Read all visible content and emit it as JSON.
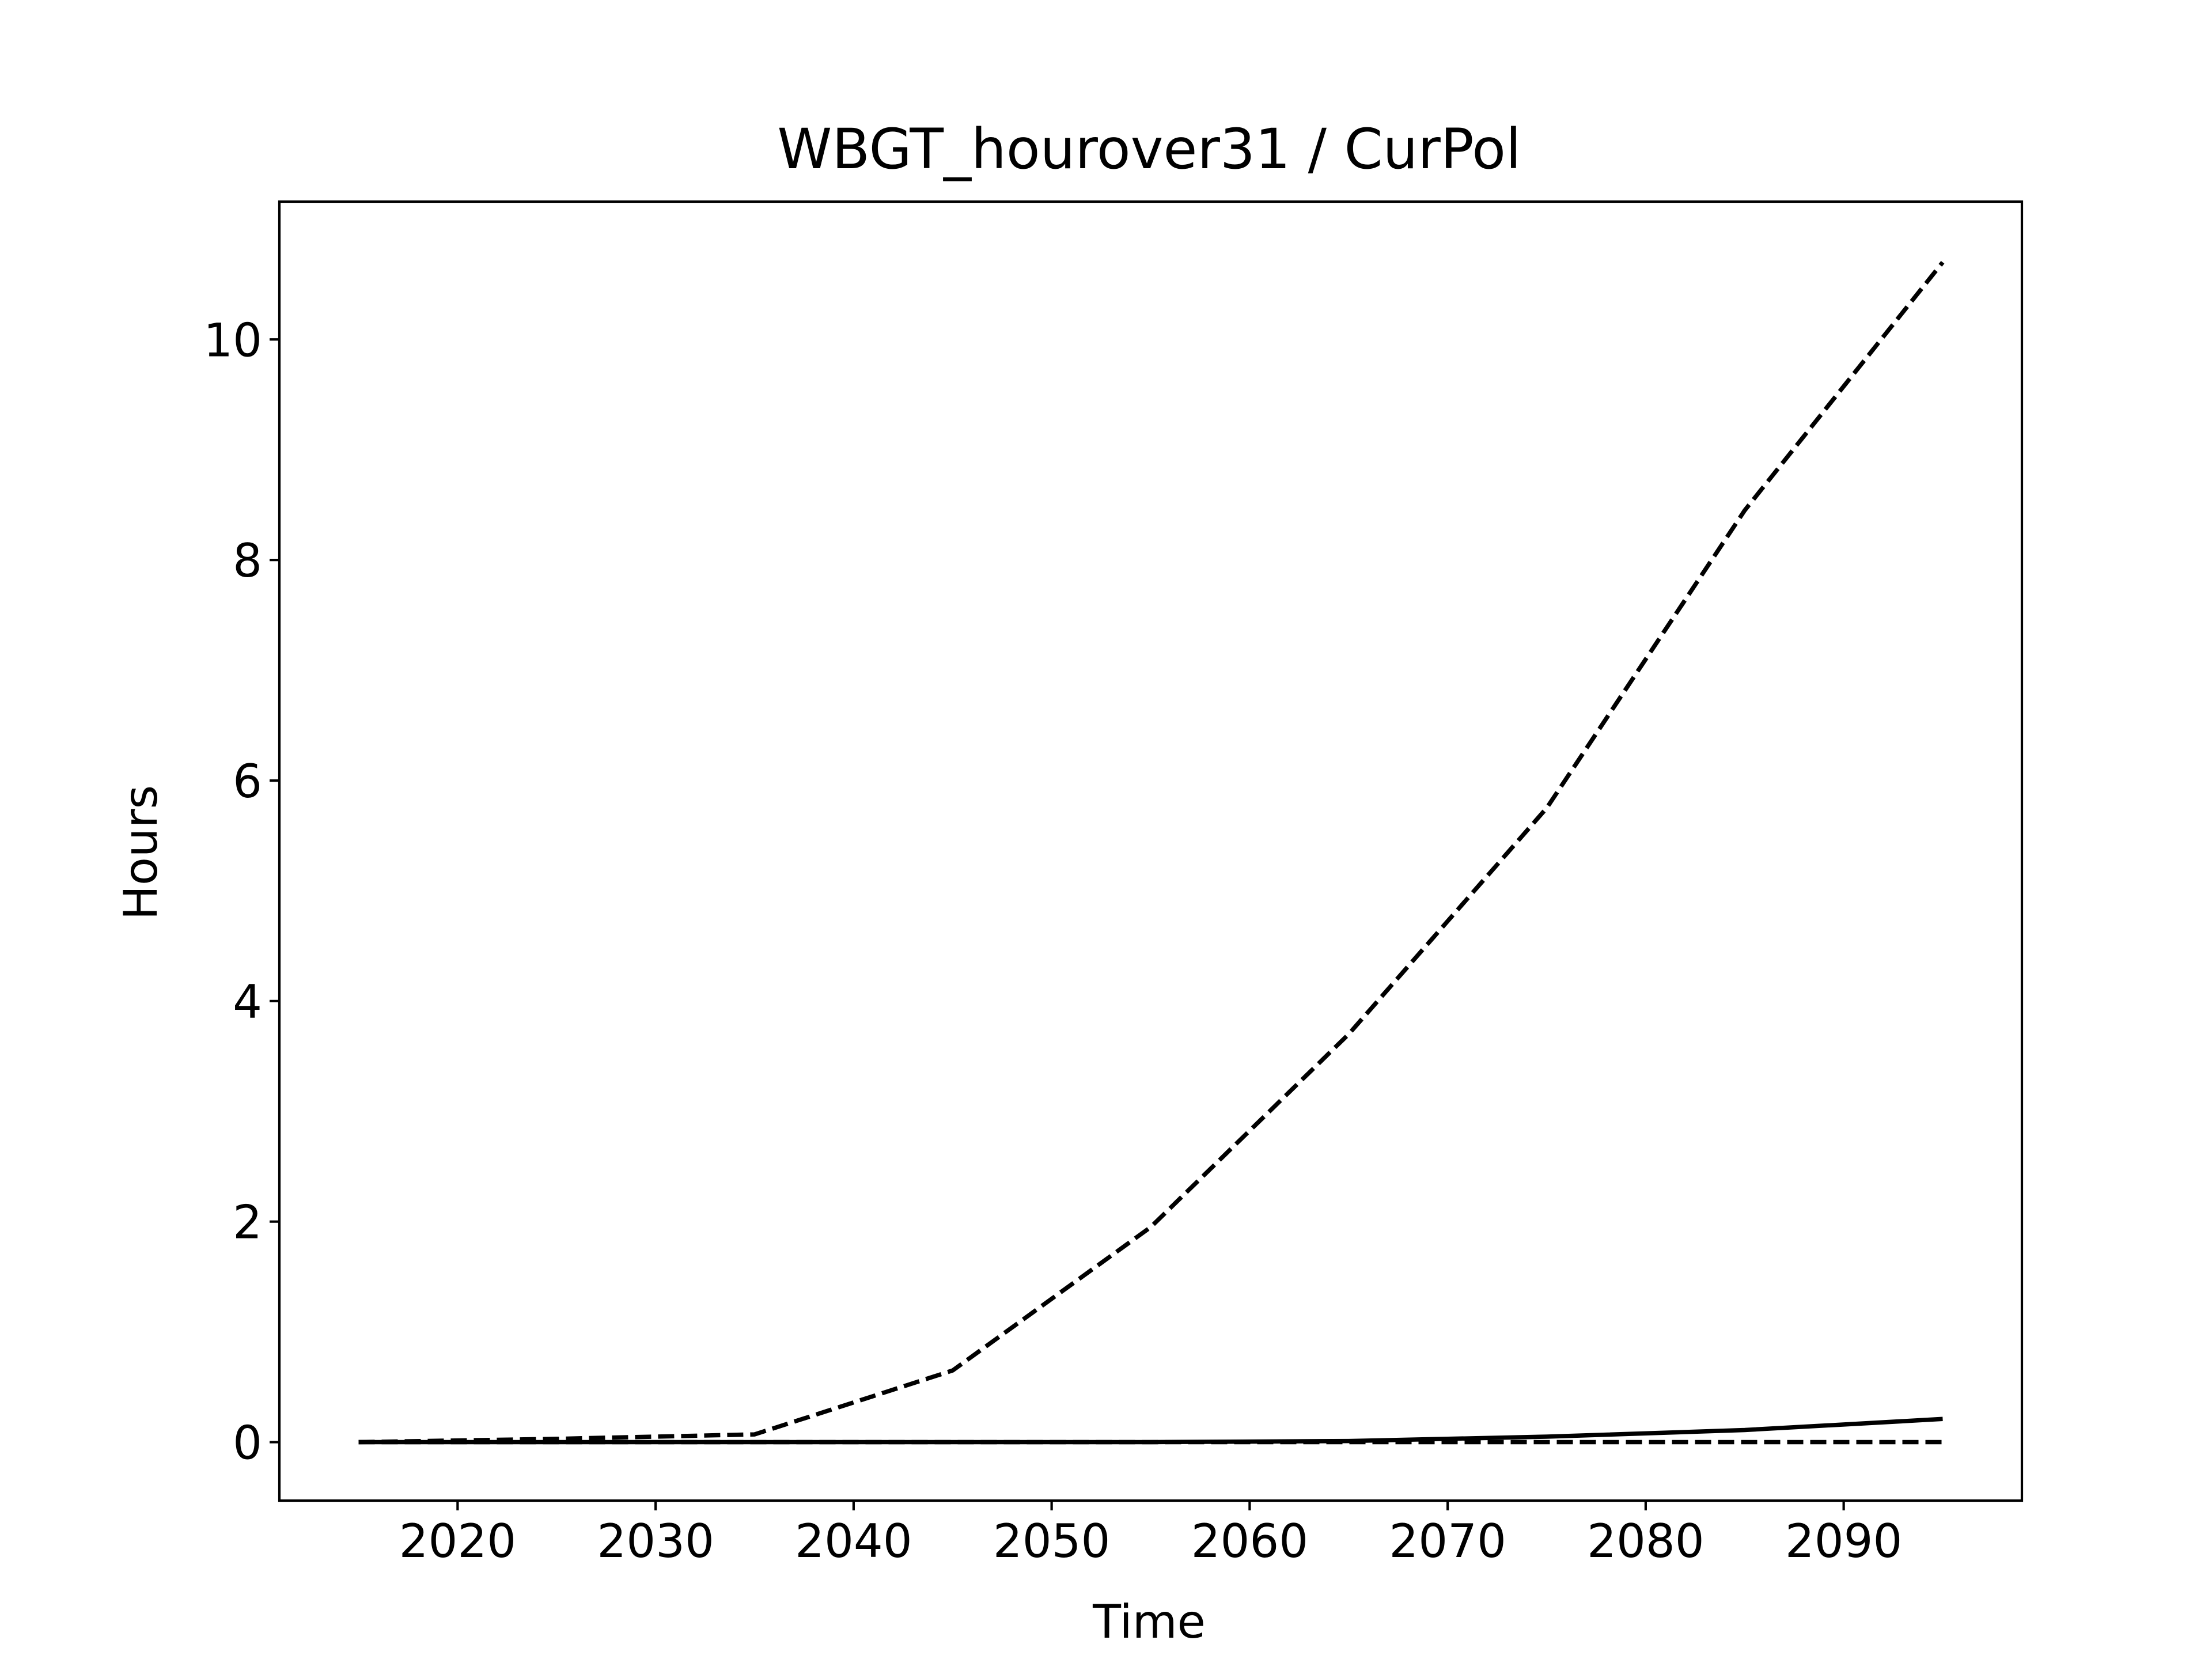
{
  "chart_data": {
    "type": "line",
    "title": "WBGT_hourover31 / CurPol",
    "xlabel": "Time",
    "ylabel": "Hours",
    "xlim": [
      2011,
      2099
    ],
    "ylim": [
      -0.53,
      11.25
    ],
    "x_ticks": [
      2020,
      2030,
      2040,
      2050,
      2060,
      2070,
      2080,
      2090
    ],
    "y_ticks": [
      0,
      2,
      4,
      6,
      8,
      10
    ],
    "grid": false,
    "legend": "none",
    "x": [
      2015,
      2025,
      2035,
      2045,
      2055,
      2065,
      2075,
      2085,
      2095
    ],
    "series": [
      {
        "style": "dashed",
        "color": "#000000",
        "values": [
          0.0,
          0.03,
          0.07,
          0.65,
          1.95,
          3.7,
          5.75,
          8.45,
          10.7
        ]
      },
      {
        "style": "solid",
        "color": "#000000",
        "values": [
          0.0,
          0.0,
          0.0,
          0.0,
          0.0,
          0.01,
          0.05,
          0.11,
          0.21
        ]
      },
      {
        "style": "dashed",
        "color": "#000000",
        "values": [
          0.0,
          0.0,
          0.0,
          0.0,
          0.0,
          0.0,
          0.0,
          0.0,
          0.0
        ]
      }
    ]
  }
}
